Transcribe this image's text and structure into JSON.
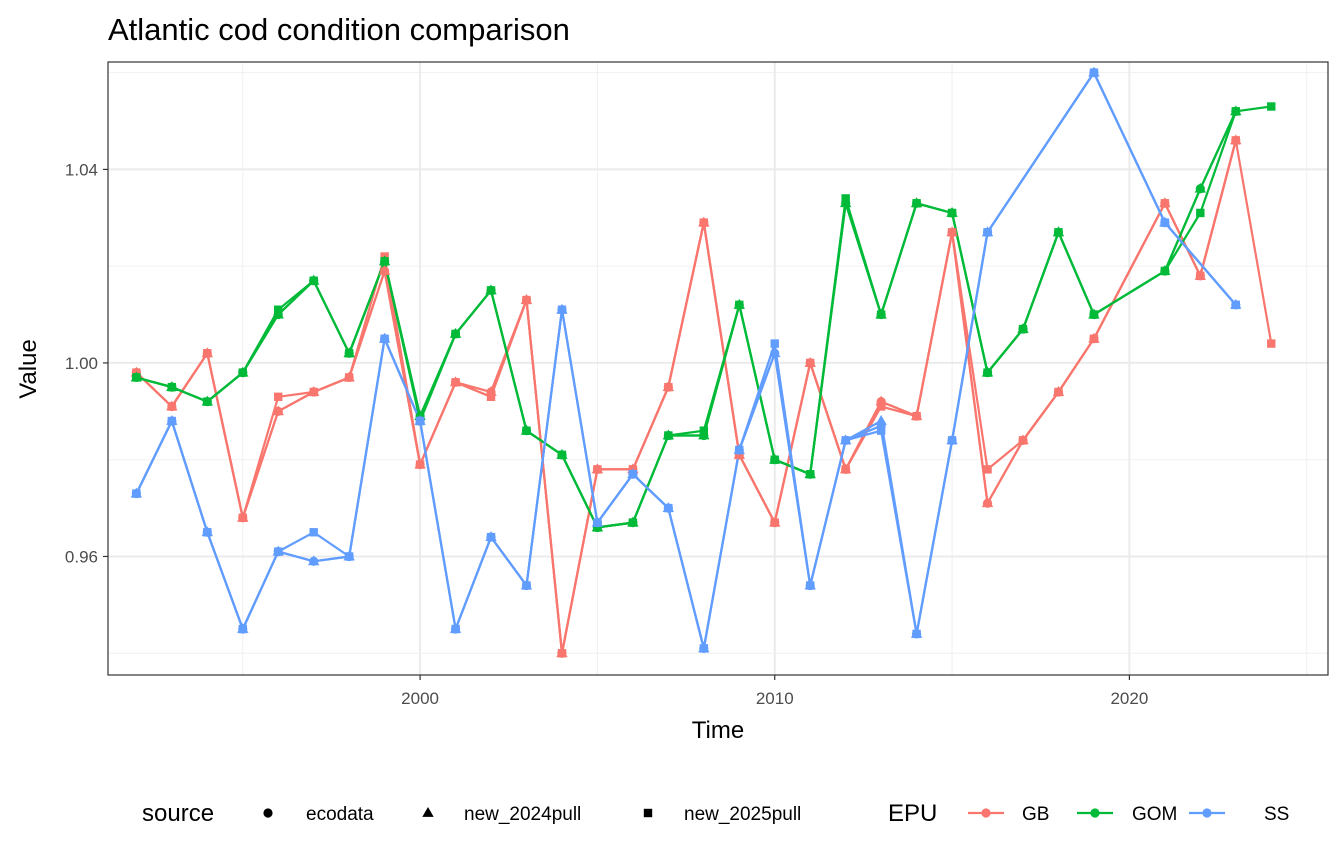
{
  "chart_data": {
    "type": "line",
    "title": "Atlantic cod condition comparison",
    "xlabel": "Time",
    "ylabel": "Value",
    "xlim": [
      1991.2,
      2025.6
    ],
    "ylim": [
      0.9355,
      1.0622
    ],
    "x_ticks": [
      2000,
      2010,
      2020
    ],
    "x_minor_ticks": [
      1995,
      2005,
      2015,
      2025
    ],
    "y_ticks": [
      0.96,
      1.0,
      1.04
    ],
    "y_minor_ticks": [
      0.94,
      0.98,
      1.02,
      1.06
    ],
    "grid": true,
    "legend_position": "bottom",
    "legends": {
      "source": {
        "title": "source",
        "entries": [
          {
            "label": "ecodata",
            "shape": "circle"
          },
          {
            "label": "new_2024pull",
            "shape": "triangle"
          },
          {
            "label": "new_2025pull",
            "shape": "square"
          }
        ]
      },
      "epu": {
        "title": "EPU",
        "entries": [
          {
            "label": "GB",
            "color": "#F8766D"
          },
          {
            "label": "GOM",
            "color": "#00BA38"
          },
          {
            "label": "SS",
            "color": "#619CFF"
          }
        ]
      }
    },
    "series": [
      {
        "name": "GB",
        "source": "ecodata",
        "color": "#F8766D",
        "shape": "circle",
        "x": [
          1992,
          1993,
          1994,
          1995,
          1996,
          1997,
          1998,
          1999,
          2000,
          2001,
          2002,
          2003,
          2004,
          2005,
          2006,
          2007,
          2008,
          2009,
          2010,
          2011,
          2012,
          2013,
          2014,
          2015,
          2016,
          2017,
          2018,
          2019,
          2021,
          2022,
          2023
        ],
        "y": [
          0.998,
          0.991,
          1.002,
          0.968,
          0.99,
          0.994,
          0.997,
          1.019,
          0.979,
          0.996,
          0.994,
          1.013,
          0.94,
          0.978,
          0.978,
          0.995,
          1.029,
          0.981,
          0.967,
          1.0,
          0.978,
          0.992,
          0.989,
          1.027,
          0.971,
          0.984,
          0.994,
          1.005,
          1.033,
          1.018,
          1.046
        ]
      },
      {
        "name": "GB",
        "source": "new_2024pull",
        "color": "#F8766D",
        "shape": "triangle",
        "x": [
          1992,
          1993,
          1994,
          1995,
          1996,
          1997,
          1998,
          1999,
          2000,
          2001,
          2002,
          2003,
          2004,
          2005,
          2006,
          2007,
          2008,
          2009,
          2010,
          2011,
          2012,
          2013,
          2014,
          2015,
          2016,
          2017,
          2018,
          2019,
          2021,
          2022,
          2023
        ],
        "y": [
          0.998,
          0.991,
          1.002,
          0.968,
          0.99,
          0.994,
          0.997,
          1.019,
          0.979,
          0.996,
          0.994,
          1.013,
          0.94,
          0.978,
          0.978,
          0.995,
          1.029,
          0.981,
          0.967,
          1.0,
          0.978,
          0.992,
          0.989,
          1.027,
          0.971,
          0.984,
          0.994,
          1.005,
          1.033,
          1.018,
          1.046
        ]
      },
      {
        "name": "GB",
        "source": "new_2025pull",
        "color": "#F8766D",
        "shape": "square",
        "x": [
          1992,
          1993,
          1994,
          1995,
          1996,
          1997,
          1998,
          1999,
          2000,
          2001,
          2002,
          2003,
          2004,
          2005,
          2006,
          2007,
          2008,
          2009,
          2010,
          2011,
          2012,
          2013,
          2014,
          2015,
          2016,
          2017,
          2018,
          2019,
          2021,
          2022,
          2023,
          2024
        ],
        "y": [
          0.998,
          0.991,
          1.002,
          0.968,
          0.993,
          0.994,
          0.997,
          1.022,
          0.979,
          0.996,
          0.993,
          1.013,
          0.94,
          0.978,
          0.978,
          0.995,
          1.029,
          0.981,
          0.967,
          1.0,
          0.978,
          0.991,
          0.989,
          1.027,
          0.978,
          0.984,
          0.994,
          1.005,
          1.033,
          1.018,
          1.046,
          1.004
        ]
      },
      {
        "name": "GOM",
        "source": "ecodata",
        "color": "#00BA38",
        "shape": "circle",
        "x": [
          1992,
          1993,
          1994,
          1995,
          1996,
          1997,
          1998,
          1999,
          2000,
          2001,
          2002,
          2003,
          2004,
          2005,
          2006,
          2007,
          2008,
          2009,
          2010,
          2011,
          2012,
          2013,
          2014,
          2015,
          2016,
          2017,
          2018,
          2019,
          2021,
          2022,
          2023
        ],
        "y": [
          0.997,
          0.995,
          0.992,
          0.998,
          1.01,
          1.017,
          1.002,
          1.021,
          0.989,
          1.006,
          1.015,
          0.986,
          0.981,
          0.966,
          0.967,
          0.985,
          0.985,
          1.012,
          0.98,
          0.977,
          1.033,
          1.01,
          1.033,
          1.031,
          0.998,
          1.007,
          1.027,
          1.01,
          1.019,
          1.036,
          1.052
        ]
      },
      {
        "name": "GOM",
        "source": "new_2024pull",
        "color": "#00BA38",
        "shape": "triangle",
        "x": [
          1992,
          1993,
          1994,
          1995,
          1996,
          1997,
          1998,
          1999,
          2000,
          2001,
          2002,
          2003,
          2004,
          2005,
          2006,
          2007,
          2008,
          2009,
          2010,
          2011,
          2012,
          2013,
          2014,
          2015,
          2016,
          2017,
          2018,
          2019,
          2021,
          2022,
          2023
        ],
        "y": [
          0.997,
          0.995,
          0.992,
          0.998,
          1.01,
          1.017,
          1.002,
          1.021,
          0.989,
          1.006,
          1.015,
          0.986,
          0.981,
          0.966,
          0.967,
          0.985,
          0.985,
          1.012,
          0.98,
          0.977,
          1.033,
          1.01,
          1.033,
          1.031,
          0.998,
          1.007,
          1.027,
          1.01,
          1.019,
          1.036,
          1.052
        ]
      },
      {
        "name": "GOM",
        "source": "new_2025pull",
        "color": "#00BA38",
        "shape": "square",
        "x": [
          1992,
          1993,
          1994,
          1995,
          1996,
          1997,
          1998,
          1999,
          2000,
          2001,
          2002,
          2003,
          2004,
          2005,
          2006,
          2007,
          2008,
          2009,
          2010,
          2011,
          2012,
          2013,
          2014,
          2015,
          2016,
          2017,
          2018,
          2019,
          2021,
          2022,
          2023,
          2024
        ],
        "y": [
          0.997,
          0.995,
          0.992,
          0.998,
          1.011,
          1.017,
          1.002,
          1.021,
          0.988,
          1.006,
          1.015,
          0.986,
          0.981,
          0.966,
          0.967,
          0.985,
          0.986,
          1.012,
          0.98,
          0.977,
          1.034,
          1.01,
          1.033,
          1.031,
          0.998,
          1.007,
          1.027,
          1.01,
          1.019,
          1.031,
          1.052,
          1.053
        ]
      },
      {
        "name": "SS",
        "source": "ecodata",
        "color": "#619CFF",
        "shape": "circle",
        "x": [
          1992,
          1993,
          1994,
          1995,
          1996,
          1997,
          1998,
          1999,
          2000,
          2001,
          2002,
          2003,
          2004,
          2005,
          2006,
          2007,
          2008,
          2009,
          2010,
          2011,
          2012,
          2013,
          2014,
          2015,
          2016,
          2019,
          2021,
          2023
        ],
        "y": [
          0.973,
          0.988,
          0.965,
          0.945,
          0.961,
          0.959,
          0.96,
          1.005,
          0.988,
          0.945,
          0.964,
          0.954,
          1.011,
          0.967,
          0.977,
          0.97,
          0.941,
          0.982,
          1.002,
          0.954,
          0.984,
          0.987,
          0.944,
          0.984,
          1.027,
          1.06,
          1.029,
          1.012
        ]
      },
      {
        "name": "SS",
        "source": "new_2024pull",
        "color": "#619CFF",
        "shape": "triangle",
        "x": [
          1992,
          1993,
          1994,
          1995,
          1996,
          1997,
          1998,
          1999,
          2000,
          2001,
          2002,
          2003,
          2004,
          2005,
          2006,
          2007,
          2008,
          2009,
          2010,
          2011,
          2012,
          2013,
          2014,
          2015,
          2016,
          2019,
          2021,
          2023
        ],
        "y": [
          0.973,
          0.988,
          0.965,
          0.945,
          0.961,
          0.959,
          0.96,
          1.005,
          0.988,
          0.945,
          0.964,
          0.954,
          1.011,
          0.967,
          0.977,
          0.97,
          0.941,
          0.982,
          1.002,
          0.954,
          0.984,
          0.988,
          0.944,
          0.984,
          1.027,
          1.06,
          1.029,
          1.012
        ]
      },
      {
        "name": "SS",
        "source": "new_2025pull",
        "color": "#619CFF",
        "shape": "square",
        "x": [
          1992,
          1993,
          1994,
          1995,
          1996,
          1997,
          1998,
          1999,
          2000,
          2001,
          2002,
          2003,
          2004,
          2005,
          2006,
          2007,
          2008,
          2009,
          2010,
          2011,
          2012,
          2013,
          2014,
          2015,
          2016,
          2019,
          2021,
          2023
        ],
        "y": [
          0.973,
          0.988,
          0.965,
          0.945,
          0.961,
          0.965,
          0.96,
          1.005,
          0.988,
          0.945,
          0.964,
          0.954,
          1.011,
          0.967,
          0.977,
          0.97,
          0.941,
          0.982,
          1.004,
          0.954,
          0.984,
          0.986,
          0.944,
          0.984,
          1.027,
          1.06,
          1.029,
          1.012
        ]
      }
    ]
  }
}
